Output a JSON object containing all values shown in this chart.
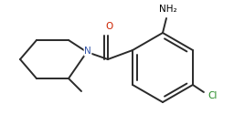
{
  "background_color": "#ffffff",
  "line_color": "#2a2a2a",
  "line_width": 1.4,
  "figsize": [
    2.56,
    1.37
  ],
  "dpi": 100,
  "xlim": [
    0,
    256
  ],
  "ylim": [
    0,
    137
  ]
}
